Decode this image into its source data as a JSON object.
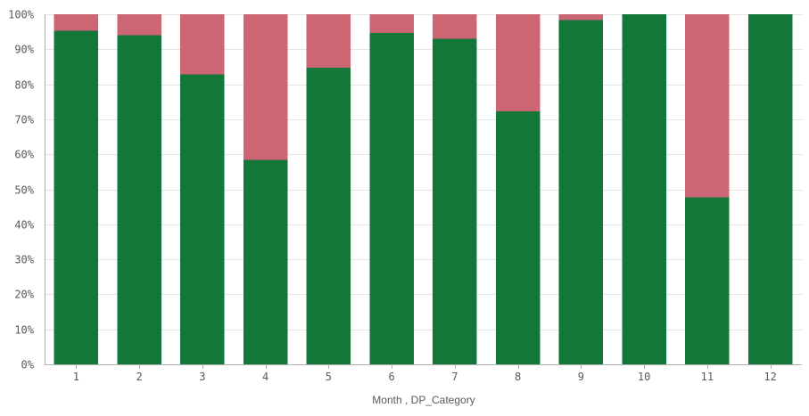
{
  "chart_data": {
    "type": "bar",
    "stacked": true,
    "normalized": true,
    "categories": [
      "1",
      "2",
      "3",
      "4",
      "5",
      "6",
      "7",
      "8",
      "9",
      "10",
      "11",
      "12"
    ],
    "series": [
      {
        "values": [
          95.3,
          94.0,
          82.8,
          58.4,
          84.7,
          94.6,
          93.0,
          72.3,
          98.4,
          100.0,
          47.7,
          100.0
        ],
        "color": "#13773a"
      },
      {
        "values": [
          4.7,
          6.0,
          17.2,
          41.6,
          15.3,
          5.4,
          7.0,
          27.7,
          1.6,
          0.0,
          52.3,
          0.0
        ],
        "color": "#cc6675"
      }
    ],
    "y_ticks": [
      "0%",
      "10%",
      "20%",
      "30%",
      "40%",
      "50%",
      "60%",
      "70%",
      "80%",
      "90%",
      "100%"
    ],
    "ylim": [
      0,
      100
    ],
    "xlabel": "Month , DP_Category",
    "ylabel": "",
    "grid": true
  }
}
